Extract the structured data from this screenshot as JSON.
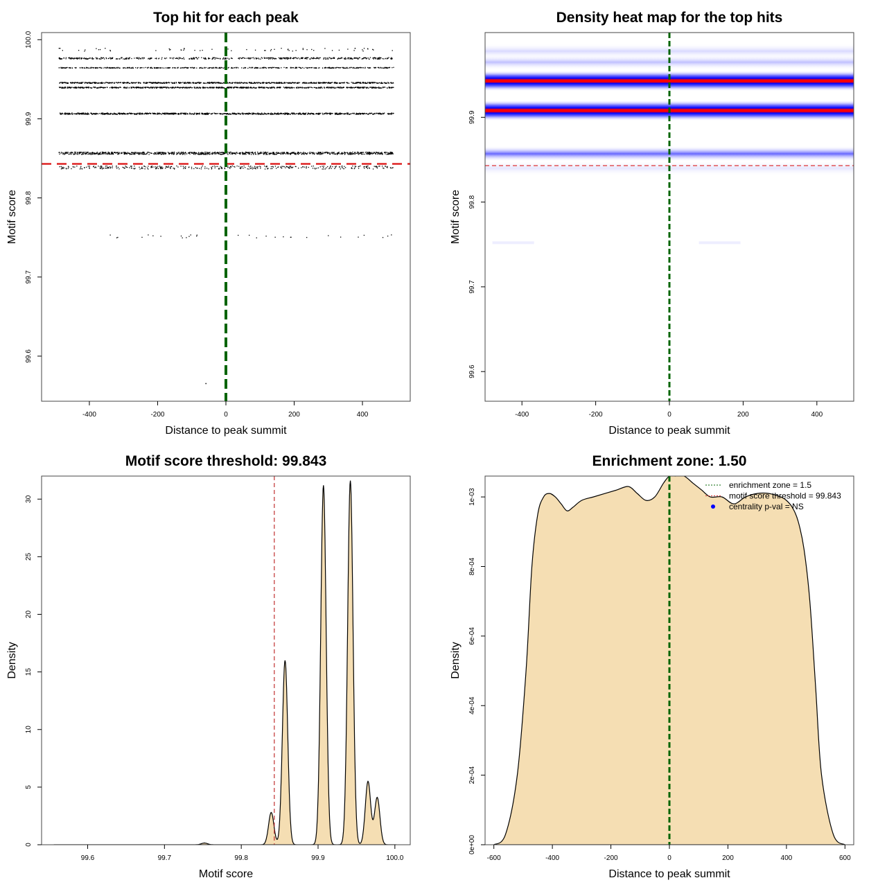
{
  "chart_data": [
    {
      "type": "scatter",
      "title": "Top hit for each peak",
      "xlabel": "Distance to peak summit",
      "ylabel": "Motif score",
      "xlim": [
        -540,
        540
      ],
      "ylim": [
        99.543,
        100.009
      ],
      "xticks": [
        -400,
        -200,
        0,
        200,
        400
      ],
      "yticks": [
        99.6,
        99.7,
        99.8,
        99.9,
        100.0
      ],
      "threshold": 99.843,
      "center_line": 0,
      "bands": [
        {
          "y": 99.988,
          "n": 60,
          "spread": 0.002
        },
        {
          "y": 99.977,
          "n": 500,
          "spread": 0.001
        },
        {
          "y": 99.965,
          "n": 500,
          "spread": 0.0005
        },
        {
          "y": 99.946,
          "n": 800,
          "spread": 0.0007
        },
        {
          "y": 99.94,
          "n": 800,
          "spread": 0.0007
        },
        {
          "y": 99.907,
          "n": 900,
          "spread": 0.0009
        },
        {
          "y": 99.857,
          "n": 1000,
          "spread": 0.0015
        },
        {
          "y": 99.839,
          "n": 350,
          "spread": 0.002
        },
        {
          "y": 99.752,
          "n": 30,
          "spread": 0.002
        }
      ],
      "outliers": [
        {
          "x": -60,
          "y": 99.566
        }
      ]
    },
    {
      "type": "heatmap",
      "title": "Density heat map for the top hits",
      "xlabel": "Distance to peak summit",
      "ylabel": "Motif score",
      "xlim": [
        -500,
        500
      ],
      "ylim": [
        99.565,
        100.0
      ],
      "xticks": [
        -400,
        -200,
        0,
        200,
        400
      ],
      "yticks": [
        99.6,
        99.7,
        99.8,
        99.9
      ],
      "threshold": 99.843,
      "center_line": 0,
      "bands": [
        {
          "y": 99.978,
          "intensity": 0.15
        },
        {
          "y": 99.965,
          "intensity": 0.25
        },
        {
          "y": 99.943,
          "intensity": 1.0
        },
        {
          "y": 99.908,
          "intensity": 0.9
        },
        {
          "y": 99.857,
          "intensity": 0.6
        },
        {
          "y": 99.84,
          "intensity": 0.1
        }
      ]
    },
    {
      "type": "area",
      "title": "Motif score threshold: 99.843",
      "xlabel": "Motif score",
      "ylabel": "Density",
      "xlim": [
        99.54,
        100.02
      ],
      "ylim": [
        0,
        32
      ],
      "xticks": [
        99.6,
        99.7,
        99.8,
        99.9,
        100.0
      ],
      "yticks": [
        0,
        5,
        10,
        15,
        20,
        25,
        30
      ],
      "threshold": 99.843,
      "fill": "#F5DEB3",
      "peaks": [
        {
          "x": 99.752,
          "y": 0.15
        },
        {
          "x": 99.839,
          "y": 2.8
        },
        {
          "x": 99.857,
          "y": 16.0
        },
        {
          "x": 99.907,
          "y": 31.2
        },
        {
          "x": 99.942,
          "y": 31.6
        },
        {
          "x": 99.965,
          "y": 5.5
        },
        {
          "x": 99.977,
          "y": 4.1
        }
      ],
      "xrange": [
        99.556,
        100.002
      ]
    },
    {
      "type": "area",
      "title": "Enrichment zone: 1.50",
      "xlabel": "Distance to peak summit",
      "ylabel": "Density",
      "xlim": [
        -630,
        630
      ],
      "ylim": [
        0,
        0.00106
      ],
      "xticks": [
        -600,
        -400,
        -200,
        0,
        200,
        400,
        600
      ],
      "yticks": [
        "0e+00",
        "2e-04",
        "4e-04",
        "6e-04",
        "8e-04",
        "1e-03"
      ],
      "ytick_values": [
        0,
        0.0002,
        0.0004,
        0.0006,
        0.0008,
        0.001
      ],
      "center_line": 0,
      "fill": "#F5DEB3",
      "x": [
        -600,
        -560,
        -520,
        -490,
        -470,
        -450,
        -430,
        -410,
        -390,
        -370,
        -350,
        -330,
        -300,
        -260,
        -220,
        -180,
        -140,
        -110,
        -80,
        -50,
        -20,
        0,
        20,
        50,
        80,
        110,
        140,
        180,
        220,
        260,
        300,
        340,
        380,
        400,
        420,
        440,
        460,
        480,
        500,
        520,
        560,
        600
      ],
      "y": [
        0,
        3e-05,
        0.0002,
        0.0005,
        0.0008,
        0.00095,
        0.001,
        0.00101,
        0.001,
        0.00098,
        0.00096,
        0.00097,
        0.00099,
        0.001,
        0.00101,
        0.00102,
        0.00103,
        0.00101,
        0.00099,
        0.001,
        0.00104,
        0.00106,
        0.00106,
        0.00106,
        0.00104,
        0.00102,
        0.001,
        0.001,
        0.00098,
        0.001,
        0.00101,
        0.00101,
        0.001,
        0.00099,
        0.00097,
        0.00093,
        0.00085,
        0.0007,
        0.00045,
        0.0002,
        3e-05,
        0
      ],
      "legend": [
        "enrichment zone = 1.5",
        "motif score threshold = 99.843",
        "centrality p-val = NS"
      ],
      "legend_position": "top-right"
    }
  ]
}
